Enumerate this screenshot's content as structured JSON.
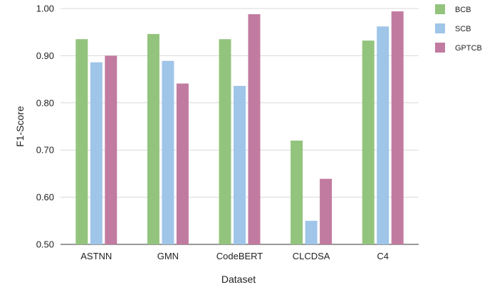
{
  "chart_data": {
    "type": "bar",
    "categories": [
      "ASTNN",
      "GMN",
      "CodeBERT",
      "CLCDSA",
      "C4"
    ],
    "series": [
      {
        "name": "BCB",
        "color": "#93c47d",
        "values": [
          0.935,
          0.946,
          0.935,
          0.72,
          0.932
        ]
      },
      {
        "name": "SCB",
        "color": "#9fc5e8",
        "values": [
          0.886,
          0.889,
          0.836,
          0.55,
          0.962
        ]
      },
      {
        "name": "GPTCB",
        "color": "#c27ba0",
        "values": [
          0.9,
          0.841,
          0.988,
          0.639,
          0.994
        ]
      }
    ],
    "xlabel": "Dataset",
    "ylabel": "F1-Score",
    "ylim": [
      0.5,
      1.0
    ],
    "yticks": [
      "0.50",
      "0.60",
      "0.70",
      "0.80",
      "0.90",
      "1.00"
    ],
    "grid": true,
    "legend_position": "top-right"
  }
}
